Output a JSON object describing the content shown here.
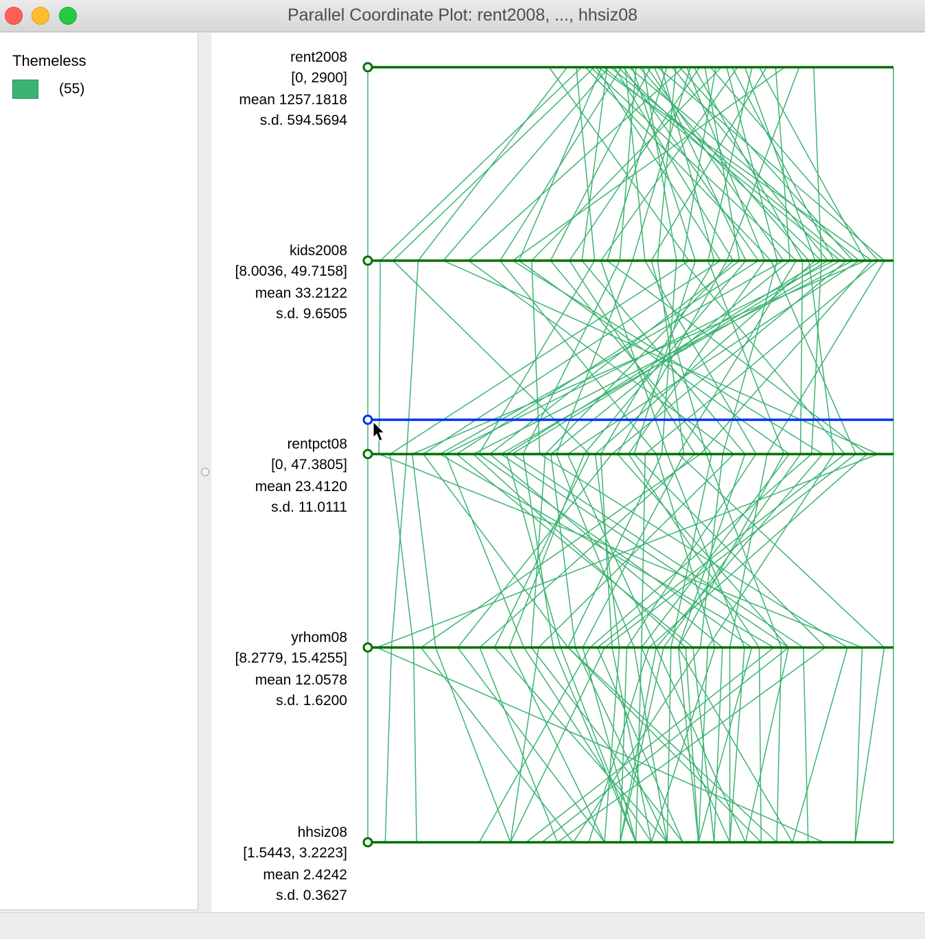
{
  "window": {
    "title": "Parallel Coordinate Plot: rent2008, ..., hhsiz08"
  },
  "legend": {
    "title": "Themeless",
    "count_label": "(55)",
    "color": "#3cb371"
  },
  "colors": {
    "axis": "#007000",
    "lines": "#3cb371",
    "highlight": "#0033ee"
  },
  "chart_data": {
    "type": "parallel-coordinates",
    "observation_count": 55,
    "axes": [
      {
        "name": "rent2008",
        "range_label": "[0, 2900]",
        "range": [
          0,
          2900
        ],
        "mean": "1257.1818",
        "sd": "594.5694"
      },
      {
        "name": "kids2008",
        "range_label": "[8.0036, 49.7158]",
        "range": [
          8.0036,
          49.7158
        ],
        "mean": "33.2122",
        "sd": "9.6505"
      },
      {
        "name": "rentpct08",
        "range_label": "[0, 47.3805]",
        "range": [
          0,
          47.3805
        ],
        "mean": "23.4120",
        "sd": "11.0111"
      },
      {
        "name": "yrhom08",
        "range_label": "[8.2779, 15.4255]",
        "range": [
          8.2779,
          15.4255
        ],
        "mean": "12.0578",
        "sd": "1.6200"
      },
      {
        "name": "hhsiz08",
        "range_label": "[1.5443, 3.2223]",
        "range": [
          1.5443,
          3.2223
        ],
        "mean": "2.4242",
        "sd": "0.3627"
      }
    ],
    "rows": [
      [
        0,
        8.0036,
        0,
        8.2779,
        1.5443
      ],
      [
        2900,
        49.7158,
        47.3805,
        15.4255,
        3.2223
      ],
      [
        1000,
        33.5,
        2.0,
        8.9,
        1.7
      ],
      [
        1150,
        26.0,
        10.0,
        13.5,
        2.6
      ],
      [
        1200,
        40.0,
        44.0,
        11.5,
        2.0
      ],
      [
        1230,
        42.0,
        28.0,
        15.3,
        3.1
      ],
      [
        1250,
        10.0,
        20.0,
        10.0,
        2.5
      ],
      [
        1260,
        36.0,
        5.0,
        11.0,
        2.8
      ],
      [
        1270,
        48.0,
        30.0,
        9.0,
        2.2
      ],
      [
        1290,
        20.0,
        38.0,
        12.0,
        2.7
      ],
      [
        1300,
        45.5,
        12.0,
        14.0,
        2.1
      ],
      [
        1320,
        25.0,
        34.0,
        12.5,
        2.9
      ],
      [
        1340,
        46.0,
        22.0,
        9.5,
        2.3
      ],
      [
        1360,
        37.0,
        16.0,
        10.5,
        2.55
      ],
      [
        1380,
        44.0,
        40.0,
        11.3,
        1.9
      ],
      [
        1400,
        18.5,
        26.0,
        13.0,
        2.45
      ],
      [
        1410,
        39.0,
        8.0,
        12.7,
        2.65
      ],
      [
        1420,
        30.0,
        35.0,
        11.8,
        2.35
      ],
      [
        1440,
        47.0,
        18.0,
        12.2,
        2.75
      ],
      [
        1460,
        34.0,
        24.0,
        14.5,
        2.15
      ],
      [
        1480,
        28.0,
        14.0,
        10.8,
        2.4
      ],
      [
        1500,
        43.0,
        42.0,
        12.9,
        2.6
      ],
      [
        1520,
        32.5,
        26.5,
        11.0,
        2.85
      ],
      [
        1540,
        41.0,
        6.5,
        13.8,
        2.05
      ],
      [
        1560,
        22.5,
        31.0,
        12.4,
        2.5
      ],
      [
        1580,
        38.0,
        19.5,
        10.2,
        2.3
      ],
      [
        1600,
        49.0,
        36.0,
        13.2,
        2.7
      ],
      [
        1620,
        35.5,
        21.0,
        11.6,
        2.45
      ],
      [
        1650,
        27.0,
        45.0,
        12.1,
        2.25
      ],
      [
        1680,
        44.5,
        13.0,
        14.2,
        2.95
      ],
      [
        1700,
        31.0,
        28.5,
        11.2,
        2.4
      ],
      [
        1720,
        46.5,
        9.5,
        12.6,
        2.6
      ],
      [
        1740,
        16.0,
        33.0,
        10.6,
        2.0
      ],
      [
        1760,
        39.5,
        23.5,
        13.6,
        2.8
      ],
      [
        1780,
        29.0,
        17.0,
        11.9,
        2.5
      ],
      [
        1800,
        42.5,
        39.0,
        12.3,
        2.35
      ],
      [
        1830,
        24.0,
        29.5,
        9.8,
        2.15
      ],
      [
        1860,
        37.5,
        11.0,
        13.1,
        2.65
      ],
      [
        1890,
        48.5,
        25.0,
        12.0,
        2.4
      ],
      [
        1920,
        33.0,
        43.0,
        11.4,
        2.55
      ],
      [
        1950,
        21.0,
        15.5,
        14.8,
        2.9
      ],
      [
        1980,
        40.5,
        32.0,
        12.8,
        2.2
      ],
      [
        2010,
        45.0,
        7.0,
        10.4,
        2.45
      ],
      [
        2040,
        26.5,
        27.0,
        13.4,
        2.7
      ],
      [
        2080,
        43.5,
        20.5,
        11.7,
        2.3
      ],
      [
        2120,
        35.0,
        37.5,
        12.5,
        2.6
      ],
      [
        2160,
        47.5,
        4.0,
        9.2,
        2.0
      ],
      [
        2200,
        30.5,
        30.5,
        13.9,
        2.85
      ],
      [
        2250,
        41.5,
        16.5,
        11.1,
        2.5
      ],
      [
        2300,
        19.5,
        41.0,
        12.2,
        2.35
      ],
      [
        2380,
        36.5,
        22.5,
        14.0,
        2.75
      ],
      [
        2460,
        44.0,
        12.5,
        10.9,
        2.4
      ],
      [
        1100,
        12.0,
        3.5,
        8.6,
        1.6
      ],
      [
        1180,
        9.0,
        1.0,
        15.0,
        3.1
      ],
      [
        1330,
        14.0,
        46.0,
        8.4,
        3.0
      ]
    ]
  }
}
